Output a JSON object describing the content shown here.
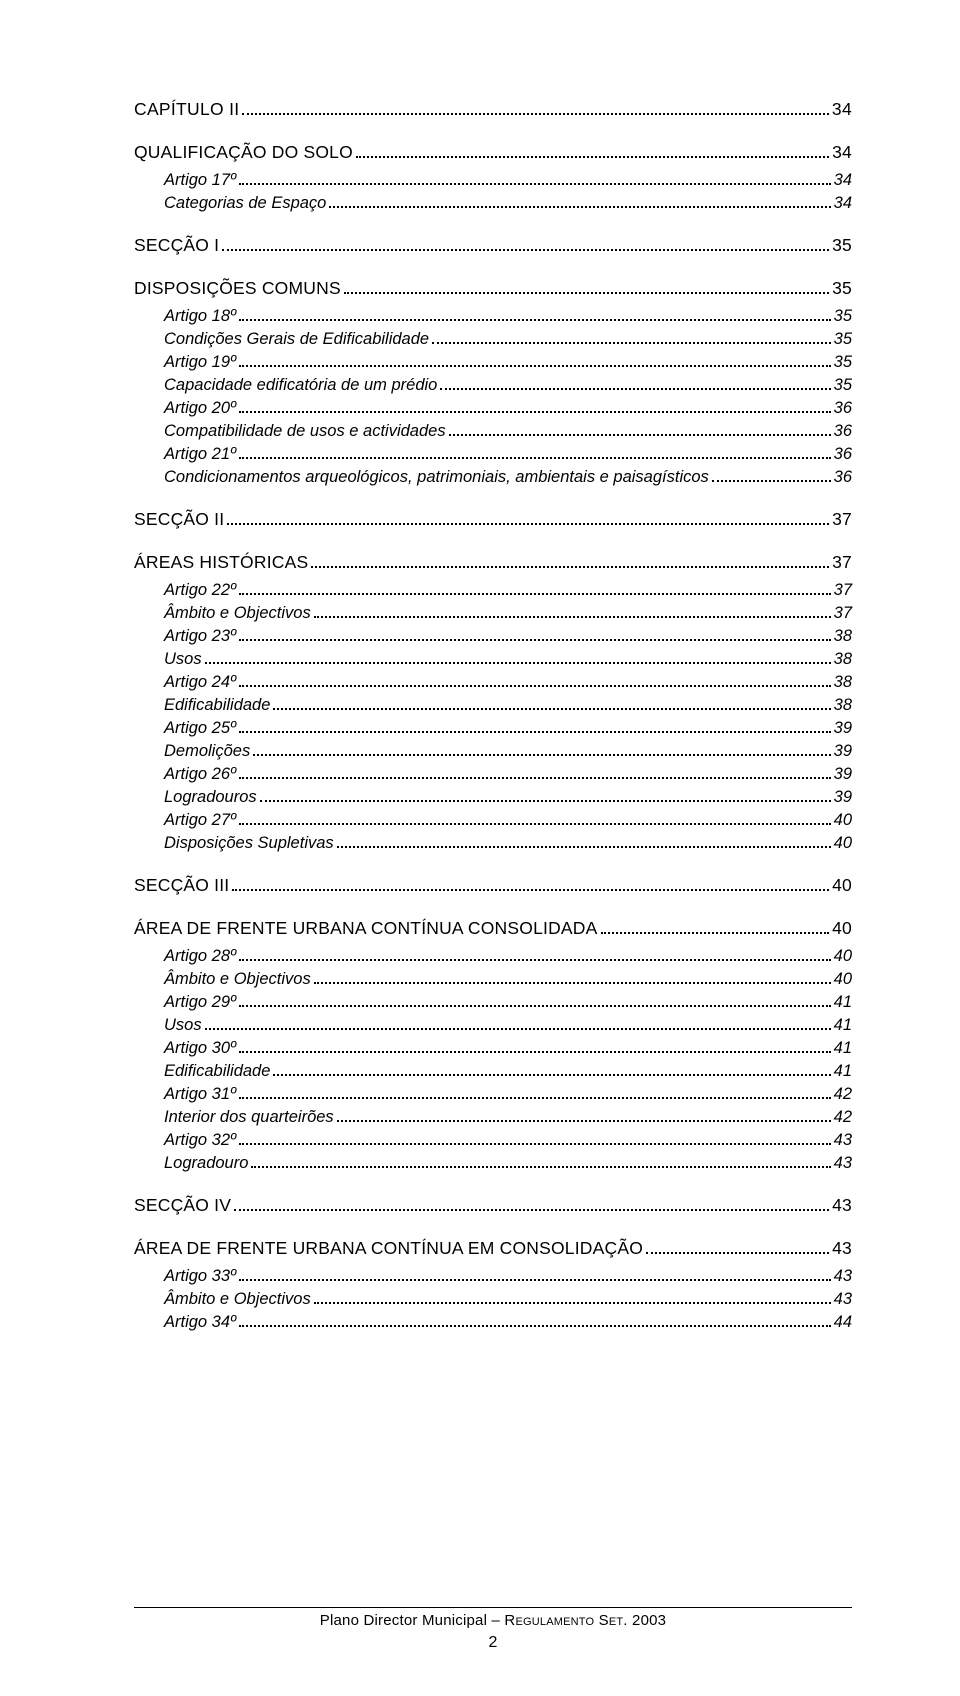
{
  "toc": [
    {
      "level": 0,
      "label": "CAPÍTULO II",
      "page": "34"
    },
    {
      "level": 1,
      "label": "QUALIFICAÇÃO DO SOLO",
      "page": "34"
    },
    {
      "level": 2,
      "label": "Artigo 17º",
      "page": "34"
    },
    {
      "level": 2,
      "label": "Categorias de Espaço",
      "page": "34"
    },
    {
      "level": 1,
      "label": "SECÇÃO I",
      "page": "35"
    },
    {
      "level": 1,
      "label": "DISPOSIÇÕES COMUNS",
      "page": "35"
    },
    {
      "level": 2,
      "label": "Artigo 18º",
      "page": "35"
    },
    {
      "level": 2,
      "label": "Condições Gerais de Edificabilidade",
      "page": "35"
    },
    {
      "level": 2,
      "label": "Artigo 19º",
      "page": "35"
    },
    {
      "level": 2,
      "label": "Capacidade edificatória de um prédio",
      "page": "35"
    },
    {
      "level": 2,
      "label": "Artigo 20º",
      "page": "36"
    },
    {
      "level": 2,
      "label": "Compatibilidade de usos e actividades",
      "page": "36"
    },
    {
      "level": 2,
      "label": "Artigo 21º",
      "page": "36"
    },
    {
      "level": 2,
      "label": "Condicionamentos arqueológicos, patrimoniais, ambientais e paisagísticos",
      "page": "36"
    },
    {
      "level": 1,
      "label": "SECÇÃO II",
      "page": "37"
    },
    {
      "level": 1,
      "label": "ÁREAS HISTÓRICAS",
      "page": "37"
    },
    {
      "level": 2,
      "label": "Artigo 22º",
      "page": "37"
    },
    {
      "level": 2,
      "label": "Âmbito e Objectivos",
      "page": "37"
    },
    {
      "level": 2,
      "label": "Artigo 23º",
      "page": "38"
    },
    {
      "level": 2,
      "label": "Usos",
      "page": "38"
    },
    {
      "level": 2,
      "label": "Artigo 24º",
      "page": "38"
    },
    {
      "level": 2,
      "label": "Edificabilidade",
      "page": "38"
    },
    {
      "level": 2,
      "label": "Artigo 25º",
      "page": "39"
    },
    {
      "level": 2,
      "label": "Demolições",
      "page": "39"
    },
    {
      "level": 2,
      "label": "Artigo 26º",
      "page": "39"
    },
    {
      "level": 2,
      "label": "Logradouros",
      "page": "39"
    },
    {
      "level": 2,
      "label": "Artigo 27º",
      "page": "40"
    },
    {
      "level": 2,
      "label": "Disposições Supletivas",
      "page": "40"
    },
    {
      "level": 1,
      "label": "SECÇÃO III",
      "page": "40"
    },
    {
      "level": 1,
      "label": "ÁREA DE FRENTE URBANA CONTÍNUA CONSOLIDADA",
      "page": "40"
    },
    {
      "level": 2,
      "label": "Artigo 28º",
      "page": "40"
    },
    {
      "level": 2,
      "label": "Âmbito e Objectivos",
      "page": "40"
    },
    {
      "level": 2,
      "label": "Artigo 29º",
      "page": "41"
    },
    {
      "level": 2,
      "label": "Usos",
      "page": "41"
    },
    {
      "level": 2,
      "label": "Artigo 30º",
      "page": "41"
    },
    {
      "level": 2,
      "label": "Edificabilidade",
      "page": "41"
    },
    {
      "level": 2,
      "label": "Artigo 31º",
      "page": "42"
    },
    {
      "level": 2,
      "label": "Interior dos quarteirões",
      "page": "42"
    },
    {
      "level": 2,
      "label": "Artigo 32º",
      "page": "43"
    },
    {
      "level": 2,
      "label": "Logradouro",
      "page": "43"
    },
    {
      "level": 1,
      "label": "SECÇÃO IV",
      "page": "43"
    },
    {
      "level": 1,
      "label": "ÁREA DE FRENTE URBANA CONTÍNUA EM CONSOLIDAÇÃO",
      "page": "43"
    },
    {
      "level": 2,
      "label": "Artigo 33º",
      "page": "43"
    },
    {
      "level": 2,
      "label": "Âmbito e Objectivos",
      "page": "43"
    },
    {
      "level": 2,
      "label": "Artigo 34º",
      "page": "44"
    }
  ],
  "footer": {
    "text_a": "Plano Director Municipal – ",
    "text_b": "Regulamento Set.",
    "text_c": " 2003",
    "page": "2"
  },
  "style": {
    "page_bg": "#ffffff",
    "text_color": "#000000",
    "dot_color": "#000000",
    "font_family": "Verdana, Geneva, sans-serif"
  }
}
